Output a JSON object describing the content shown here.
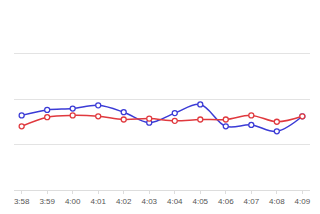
{
  "chart_data": {
    "type": "line",
    "categories": [
      "3:58",
      "3:59",
      "4:00",
      "4:01",
      "4:02",
      "4:03",
      "4:04",
      "4:05",
      "4:06",
      "4:07",
      "4:08",
      "4:09"
    ],
    "series": [
      {
        "color": "#3b3bd6",
        "values": [
          1.64,
          1.76,
          1.79,
          1.86,
          1.71,
          1.48,
          1.69,
          1.88,
          1.4,
          1.43,
          1.29,
          1.62
        ]
      },
      {
        "color": "#e0393e",
        "values": [
          1.4,
          1.6,
          1.64,
          1.62,
          1.55,
          1.57,
          1.52,
          1.55,
          1.55,
          1.64,
          1.5,
          1.62
        ]
      }
    ],
    "ylim": [
      0,
      4
    ],
    "yticks": [
      0,
      1,
      2,
      3,
      4
    ],
    "grid": true,
    "tick_labels": "x",
    "marker": "circle",
    "line_style": "smooth"
  }
}
